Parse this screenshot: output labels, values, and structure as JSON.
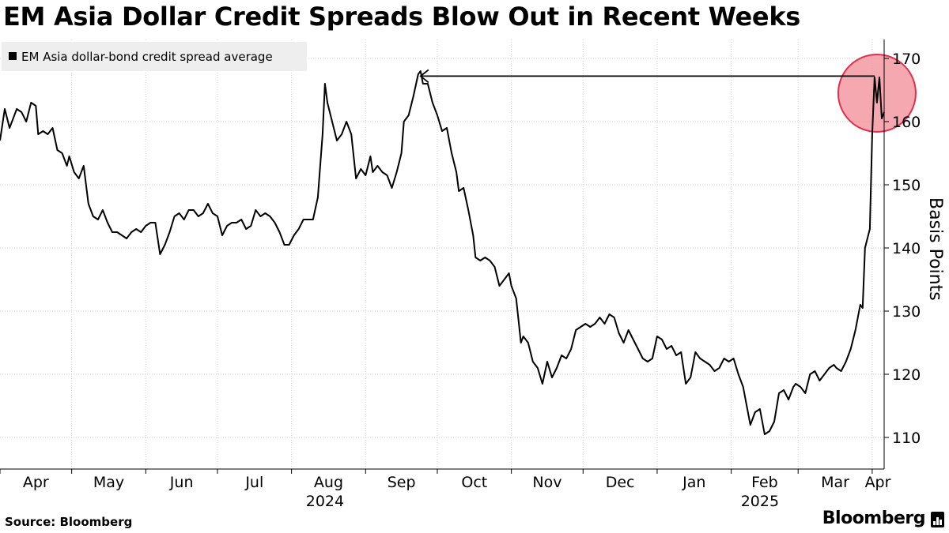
{
  "chart_data": {
    "type": "line",
    "title": "EM Asia Dollar Credit Spreads Blow Out in Recent Weeks",
    "ylabel": "Basis Points",
    "ylim": [
      105,
      173
    ],
    "yticks": [
      110,
      120,
      130,
      140,
      150,
      160,
      170
    ],
    "xlim": [
      "2024-04-01",
      "2025-04-06"
    ],
    "grid": true,
    "legend_position": "top-left",
    "months": [
      {
        "label": "Apr",
        "date": "2024-04-01"
      },
      {
        "label": "May",
        "date": "2024-05-01"
      },
      {
        "label": "Jun",
        "date": "2024-06-01"
      },
      {
        "label": "Jul",
        "date": "2024-07-01"
      },
      {
        "label": "Aug",
        "date": "2024-08-01"
      },
      {
        "label": "Sep",
        "date": "2024-09-01"
      },
      {
        "label": "Oct",
        "date": "2024-10-01"
      },
      {
        "label": "Nov",
        "date": "2024-11-01"
      },
      {
        "label": "Dec",
        "date": "2024-12-01"
      },
      {
        "label": "Jan",
        "date": "2025-01-01"
      },
      {
        "label": "Feb",
        "date": "2025-02-01"
      },
      {
        "label": "Mar",
        "date": "2025-03-01"
      },
      {
        "label": "Apr",
        "date": "2025-04-01"
      }
    ],
    "years": [
      {
        "label": "2024",
        "date": "2024-08-15"
      },
      {
        "label": "2025",
        "date": "2025-02-13"
      }
    ],
    "series": [
      {
        "name": "EM Asia dollar-bond credit spread average",
        "color": "#000000",
        "points": [
          [
            "2024-04-01",
            157
          ],
          [
            "2024-04-03",
            162
          ],
          [
            "2024-04-05",
            159
          ],
          [
            "2024-04-08",
            162
          ],
          [
            "2024-04-10",
            161.5
          ],
          [
            "2024-04-12",
            160
          ],
          [
            "2024-04-14",
            163
          ],
          [
            "2024-04-16",
            162.5
          ],
          [
            "2024-04-17",
            158
          ],
          [
            "2024-04-19",
            158.5
          ],
          [
            "2024-04-21",
            158
          ],
          [
            "2024-04-23",
            159
          ],
          [
            "2024-04-25",
            155.5
          ],
          [
            "2024-04-27",
            155
          ],
          [
            "2024-04-29",
            153
          ],
          [
            "2024-04-30",
            154.5
          ],
          [
            "2024-05-02",
            152
          ],
          [
            "2024-05-04",
            151
          ],
          [
            "2024-05-06",
            153
          ],
          [
            "2024-05-08",
            147
          ],
          [
            "2024-05-10",
            145
          ],
          [
            "2024-05-12",
            144.5
          ],
          [
            "2024-05-14",
            146
          ],
          [
            "2024-05-16",
            144
          ],
          [
            "2024-05-18",
            142.5
          ],
          [
            "2024-05-20",
            142.5
          ],
          [
            "2024-05-22",
            142
          ],
          [
            "2024-05-24",
            141.5
          ],
          [
            "2024-05-26",
            142.5
          ],
          [
            "2024-05-28",
            143
          ],
          [
            "2024-05-30",
            142.5
          ],
          [
            "2024-06-01",
            143.5
          ],
          [
            "2024-06-03",
            144
          ],
          [
            "2024-06-05",
            144
          ],
          [
            "2024-06-07",
            139
          ],
          [
            "2024-06-09",
            140.5
          ],
          [
            "2024-06-11",
            142.5
          ],
          [
            "2024-06-13",
            145
          ],
          [
            "2024-06-15",
            145.5
          ],
          [
            "2024-06-17",
            144.5
          ],
          [
            "2024-06-19",
            146
          ],
          [
            "2024-06-21",
            146
          ],
          [
            "2024-06-23",
            145
          ],
          [
            "2024-06-25",
            145.5
          ],
          [
            "2024-06-27",
            147
          ],
          [
            "2024-06-29",
            145.5
          ],
          [
            "2024-07-01",
            145
          ],
          [
            "2024-07-03",
            142
          ],
          [
            "2024-07-05",
            143.5
          ],
          [
            "2024-07-07",
            144
          ],
          [
            "2024-07-09",
            144
          ],
          [
            "2024-07-11",
            144.5
          ],
          [
            "2024-07-13",
            143
          ],
          [
            "2024-07-15",
            143.5
          ],
          [
            "2024-07-17",
            146
          ],
          [
            "2024-07-19",
            145
          ],
          [
            "2024-07-21",
            145.5
          ],
          [
            "2024-07-23",
            145
          ],
          [
            "2024-07-25",
            144
          ],
          [
            "2024-07-27",
            142.5
          ],
          [
            "2024-07-29",
            140.5
          ],
          [
            "2024-07-31",
            140.5
          ],
          [
            "2024-08-02",
            142
          ],
          [
            "2024-08-04",
            143
          ],
          [
            "2024-08-06",
            144.5
          ],
          [
            "2024-08-08",
            144.5
          ],
          [
            "2024-08-10",
            144.5
          ],
          [
            "2024-08-12",
            148
          ],
          [
            "2024-08-14",
            158
          ],
          [
            "2024-08-15",
            166
          ],
          [
            "2024-08-16",
            163
          ],
          [
            "2024-08-18",
            160
          ],
          [
            "2024-08-20",
            157
          ],
          [
            "2024-08-22",
            158
          ],
          [
            "2024-08-24",
            160
          ],
          [
            "2024-08-26",
            158
          ],
          [
            "2024-08-28",
            151
          ],
          [
            "2024-08-30",
            152.5
          ],
          [
            "2024-09-01",
            151.5
          ],
          [
            "2024-09-03",
            154.5
          ],
          [
            "2024-09-04",
            152
          ],
          [
            "2024-09-06",
            153
          ],
          [
            "2024-09-08",
            152
          ],
          [
            "2024-09-10",
            151.5
          ],
          [
            "2024-09-12",
            149.5
          ],
          [
            "2024-09-14",
            152
          ],
          [
            "2024-09-16",
            155
          ],
          [
            "2024-09-17",
            160
          ],
          [
            "2024-09-19",
            161
          ],
          [
            "2024-09-21",
            164
          ],
          [
            "2024-09-23",
            167.5
          ],
          [
            "2024-09-24",
            168
          ],
          [
            "2024-09-25",
            166
          ],
          [
            "2024-09-27",
            166
          ],
          [
            "2024-09-29",
            163
          ],
          [
            "2024-10-01",
            161
          ],
          [
            "2024-10-03",
            158.5
          ],
          [
            "2024-10-05",
            159
          ],
          [
            "2024-10-07",
            155
          ],
          [
            "2024-10-09",
            152
          ],
          [
            "2024-10-10",
            149
          ],
          [
            "2024-10-12",
            149.5
          ],
          [
            "2024-10-14",
            146
          ],
          [
            "2024-10-16",
            142
          ],
          [
            "2024-10-17",
            138.5
          ],
          [
            "2024-10-19",
            138
          ],
          [
            "2024-10-21",
            138.5
          ],
          [
            "2024-10-23",
            138
          ],
          [
            "2024-10-25",
            137
          ],
          [
            "2024-10-27",
            134
          ],
          [
            "2024-10-29",
            135
          ],
          [
            "2024-10-31",
            136
          ],
          [
            "2024-11-01",
            134
          ],
          [
            "2024-11-03",
            132
          ],
          [
            "2024-11-05",
            125
          ],
          [
            "2024-11-06",
            126
          ],
          [
            "2024-11-08",
            125
          ],
          [
            "2024-11-10",
            122
          ],
          [
            "2024-11-12",
            121
          ],
          [
            "2024-11-14",
            118.5
          ],
          [
            "2024-11-16",
            122
          ],
          [
            "2024-11-18",
            119.5
          ],
          [
            "2024-11-20",
            121
          ],
          [
            "2024-11-22",
            123
          ],
          [
            "2024-11-24",
            122.5
          ],
          [
            "2024-11-26",
            124
          ],
          [
            "2024-11-28",
            127
          ],
          [
            "2024-11-30",
            127.5
          ],
          [
            "2024-12-02",
            128
          ],
          [
            "2024-12-04",
            127.5
          ],
          [
            "2024-12-06",
            128
          ],
          [
            "2024-12-08",
            129
          ],
          [
            "2024-12-10",
            128
          ],
          [
            "2024-12-12",
            129.5
          ],
          [
            "2024-12-14",
            129
          ],
          [
            "2024-12-16",
            126.5
          ],
          [
            "2024-12-18",
            125
          ],
          [
            "2024-12-20",
            127
          ],
          [
            "2024-12-22",
            125.5
          ],
          [
            "2024-12-24",
            124
          ],
          [
            "2024-12-26",
            122.5
          ],
          [
            "2024-12-28",
            122
          ],
          [
            "2024-12-30",
            122.5
          ],
          [
            "2025-01-01",
            126
          ],
          [
            "2025-01-03",
            125.5
          ],
          [
            "2025-01-05",
            124
          ],
          [
            "2025-01-07",
            124.5
          ],
          [
            "2025-01-09",
            123
          ],
          [
            "2025-01-11",
            123.5
          ],
          [
            "2025-01-13",
            118.5
          ],
          [
            "2025-01-15",
            119.5
          ],
          [
            "2025-01-17",
            123.5
          ],
          [
            "2025-01-19",
            122.5
          ],
          [
            "2025-01-21",
            122
          ],
          [
            "2025-01-23",
            121.5
          ],
          [
            "2025-01-25",
            120.5
          ],
          [
            "2025-01-27",
            121
          ],
          [
            "2025-01-29",
            122.5
          ],
          [
            "2025-01-31",
            122
          ],
          [
            "2025-02-02",
            122.5
          ],
          [
            "2025-02-04",
            120
          ],
          [
            "2025-02-06",
            118
          ],
          [
            "2025-02-07",
            116
          ],
          [
            "2025-02-09",
            112
          ],
          [
            "2025-02-11",
            114
          ],
          [
            "2025-02-13",
            114.5
          ],
          [
            "2025-02-15",
            110.5
          ],
          [
            "2025-02-17",
            111
          ],
          [
            "2025-02-19",
            112.5
          ],
          [
            "2025-02-21",
            117
          ],
          [
            "2025-02-23",
            117.5
          ],
          [
            "2025-02-25",
            116
          ],
          [
            "2025-02-27",
            118
          ],
          [
            "2025-02-28",
            118.5
          ],
          [
            "2025-03-02",
            118
          ],
          [
            "2025-03-04",
            117
          ],
          [
            "2025-03-06",
            120
          ],
          [
            "2025-03-08",
            120.5
          ],
          [
            "2025-03-10",
            119
          ],
          [
            "2025-03-12",
            120
          ],
          [
            "2025-03-14",
            121
          ],
          [
            "2025-03-16",
            121.5
          ],
          [
            "2025-03-17",
            121
          ],
          [
            "2025-03-19",
            120.5
          ],
          [
            "2025-03-21",
            122
          ],
          [
            "2025-03-23",
            124
          ],
          [
            "2025-03-25",
            127
          ],
          [
            "2025-03-27",
            131
          ],
          [
            "2025-03-28",
            130.5
          ],
          [
            "2025-03-29",
            140
          ],
          [
            "2025-03-31",
            143
          ],
          [
            "2025-04-01",
            158
          ],
          [
            "2025-04-02",
            167
          ],
          [
            "2025-04-03",
            163
          ],
          [
            "2025-04-04",
            167
          ],
          [
            "2025-04-05",
            160.5
          ],
          [
            "2025-04-06",
            161.5
          ]
        ]
      }
    ],
    "annotations": [
      {
        "type": "arrow",
        "from": [
          "2025-04-02",
          167.2
        ],
        "to": [
          "2024-09-24",
          167.2
        ]
      },
      {
        "type": "circle",
        "center": [
          "2025-04-03",
          164.5
        ],
        "color": "#f28b96"
      }
    ]
  },
  "footer": {
    "source": "Source: Bloomberg",
    "brand": "Bloomberg"
  }
}
